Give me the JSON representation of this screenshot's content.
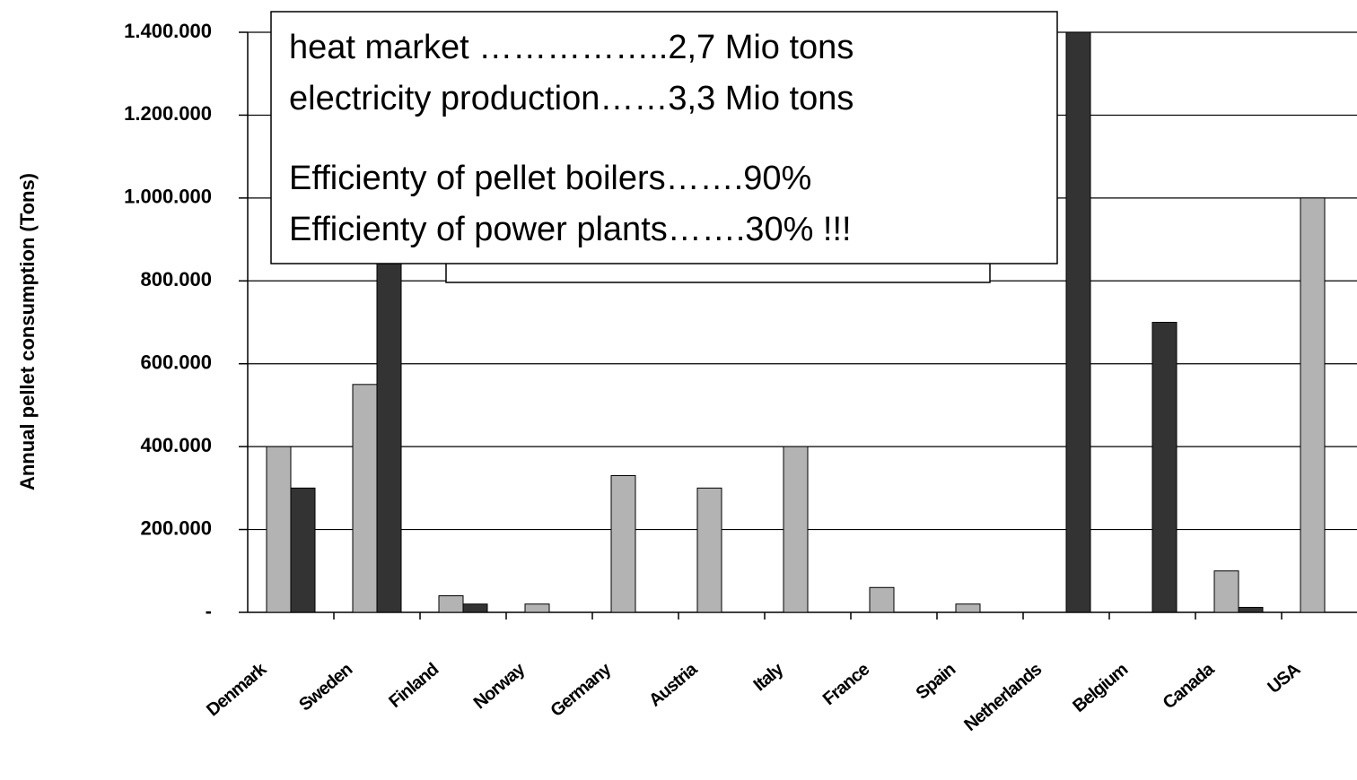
{
  "chart_data": {
    "type": "bar",
    "y_label": "Annual pellet consumption (Tons)",
    "categories": [
      "Denmark",
      "Sweden",
      "Finland",
      "Norway",
      "Germany",
      "Austria",
      "Italy",
      "France",
      "Spain",
      "Netherlands",
      "Belgium",
      "Canada",
      "USA"
    ],
    "series": [
      {
        "color": "#b3b3b3",
        "values": [
          400000,
          550000,
          40000,
          20000,
          330000,
          300000,
          400000,
          60000,
          20000,
          0,
          0,
          100000,
          1000000
        ]
      },
      {
        "color": "#333333",
        "values": [
          300000,
          900000,
          20000,
          0,
          0,
          0,
          0,
          0,
          0,
          1400000,
          700000,
          12000,
          null
        ]
      }
    ],
    "ylim": [
      0,
      1400000
    ],
    "yticks": [
      {
        "value": 0,
        "label": "-"
      },
      {
        "value": 200000,
        "label": "200.000"
      },
      {
        "value": 400000,
        "label": "400.000"
      },
      {
        "value": 600000,
        "label": "600.000"
      },
      {
        "value": 800000,
        "label": "800.000"
      },
      {
        "value": 1000000,
        "label": "1.000.000"
      },
      {
        "value": 1200000,
        "label": "1.200.000"
      },
      {
        "value": 1400000,
        "label": "1.400.000"
      }
    ],
    "grid": true,
    "annotations": [
      "heat market ……………..2,7 Mio tons",
      "electricity production……3,3 Mio tons",
      "Efficienty of pellet boilers…….90%",
      "Efficienty of power plants…….30% !!!"
    ]
  }
}
